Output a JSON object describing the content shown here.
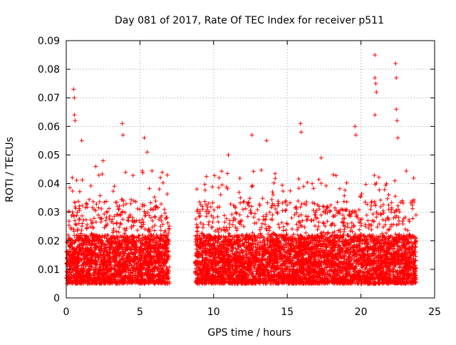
{
  "chart_data": {
    "type": "scatter",
    "title": "Day 081 of 2017, Rate Of TEC Index for receiver p511",
    "xlabel": "GPS time / hours",
    "ylabel": "ROTI / TECUs",
    "xlim": [
      0,
      25
    ],
    "ylim": [
      0,
      0.09
    ],
    "x_ticks": [
      0,
      5,
      10,
      15,
      20,
      25
    ],
    "x_tick_labels": [
      "0",
      "5",
      "10",
      "15",
      "20",
      "25"
    ],
    "y_ticks": [
      0,
      0.01,
      0.02,
      0.03,
      0.04,
      0.05,
      0.06,
      0.07,
      0.08,
      0.09
    ],
    "y_tick_labels": [
      "0",
      "0.01",
      "0.02",
      "0.03",
      "0.04",
      "0.05",
      "0.06",
      "0.07",
      "0.08",
      "0.09"
    ],
    "grid": true,
    "marker": "plus",
    "color": "#ff0000",
    "segments": [
      {
        "x_start": 0.0,
        "x_end": 7.0,
        "median_roti": 0.012,
        "max_roti": 0.073
      },
      {
        "x_start": 8.75,
        "x_end": 23.75,
        "median_roti": 0.012,
        "max_roti": 0.085
      }
    ],
    "peaks": [
      {
        "x": 0.5,
        "y": 0.073
      },
      {
        "x": 0.55,
        "y": 0.07
      },
      {
        "x": 0.55,
        "y": 0.064
      },
      {
        "x": 0.6,
        "y": 0.062
      },
      {
        "x": 1.05,
        "y": 0.055
      },
      {
        "x": 2.0,
        "y": 0.046
      },
      {
        "x": 2.5,
        "y": 0.048
      },
      {
        "x": 3.8,
        "y": 0.061
      },
      {
        "x": 3.85,
        "y": 0.057
      },
      {
        "x": 5.3,
        "y": 0.056
      },
      {
        "x": 5.5,
        "y": 0.051
      },
      {
        "x": 6.85,
        "y": 0.043
      },
      {
        "x": 11.0,
        "y": 0.05
      },
      {
        "x": 12.6,
        "y": 0.057
      },
      {
        "x": 13.6,
        "y": 0.055
      },
      {
        "x": 15.9,
        "y": 0.061
      },
      {
        "x": 15.95,
        "y": 0.058
      },
      {
        "x": 17.3,
        "y": 0.049
      },
      {
        "x": 19.6,
        "y": 0.06
      },
      {
        "x": 19.65,
        "y": 0.057
      },
      {
        "x": 20.95,
        "y": 0.085
      },
      {
        "x": 20.95,
        "y": 0.077
      },
      {
        "x": 21.0,
        "y": 0.075
      },
      {
        "x": 21.05,
        "y": 0.072
      },
      {
        "x": 20.95,
        "y": 0.064
      },
      {
        "x": 22.35,
        "y": 0.082
      },
      {
        "x": 22.4,
        "y": 0.077
      },
      {
        "x": 22.4,
        "y": 0.066
      },
      {
        "x": 22.45,
        "y": 0.062
      },
      {
        "x": 22.5,
        "y": 0.056
      }
    ]
  }
}
